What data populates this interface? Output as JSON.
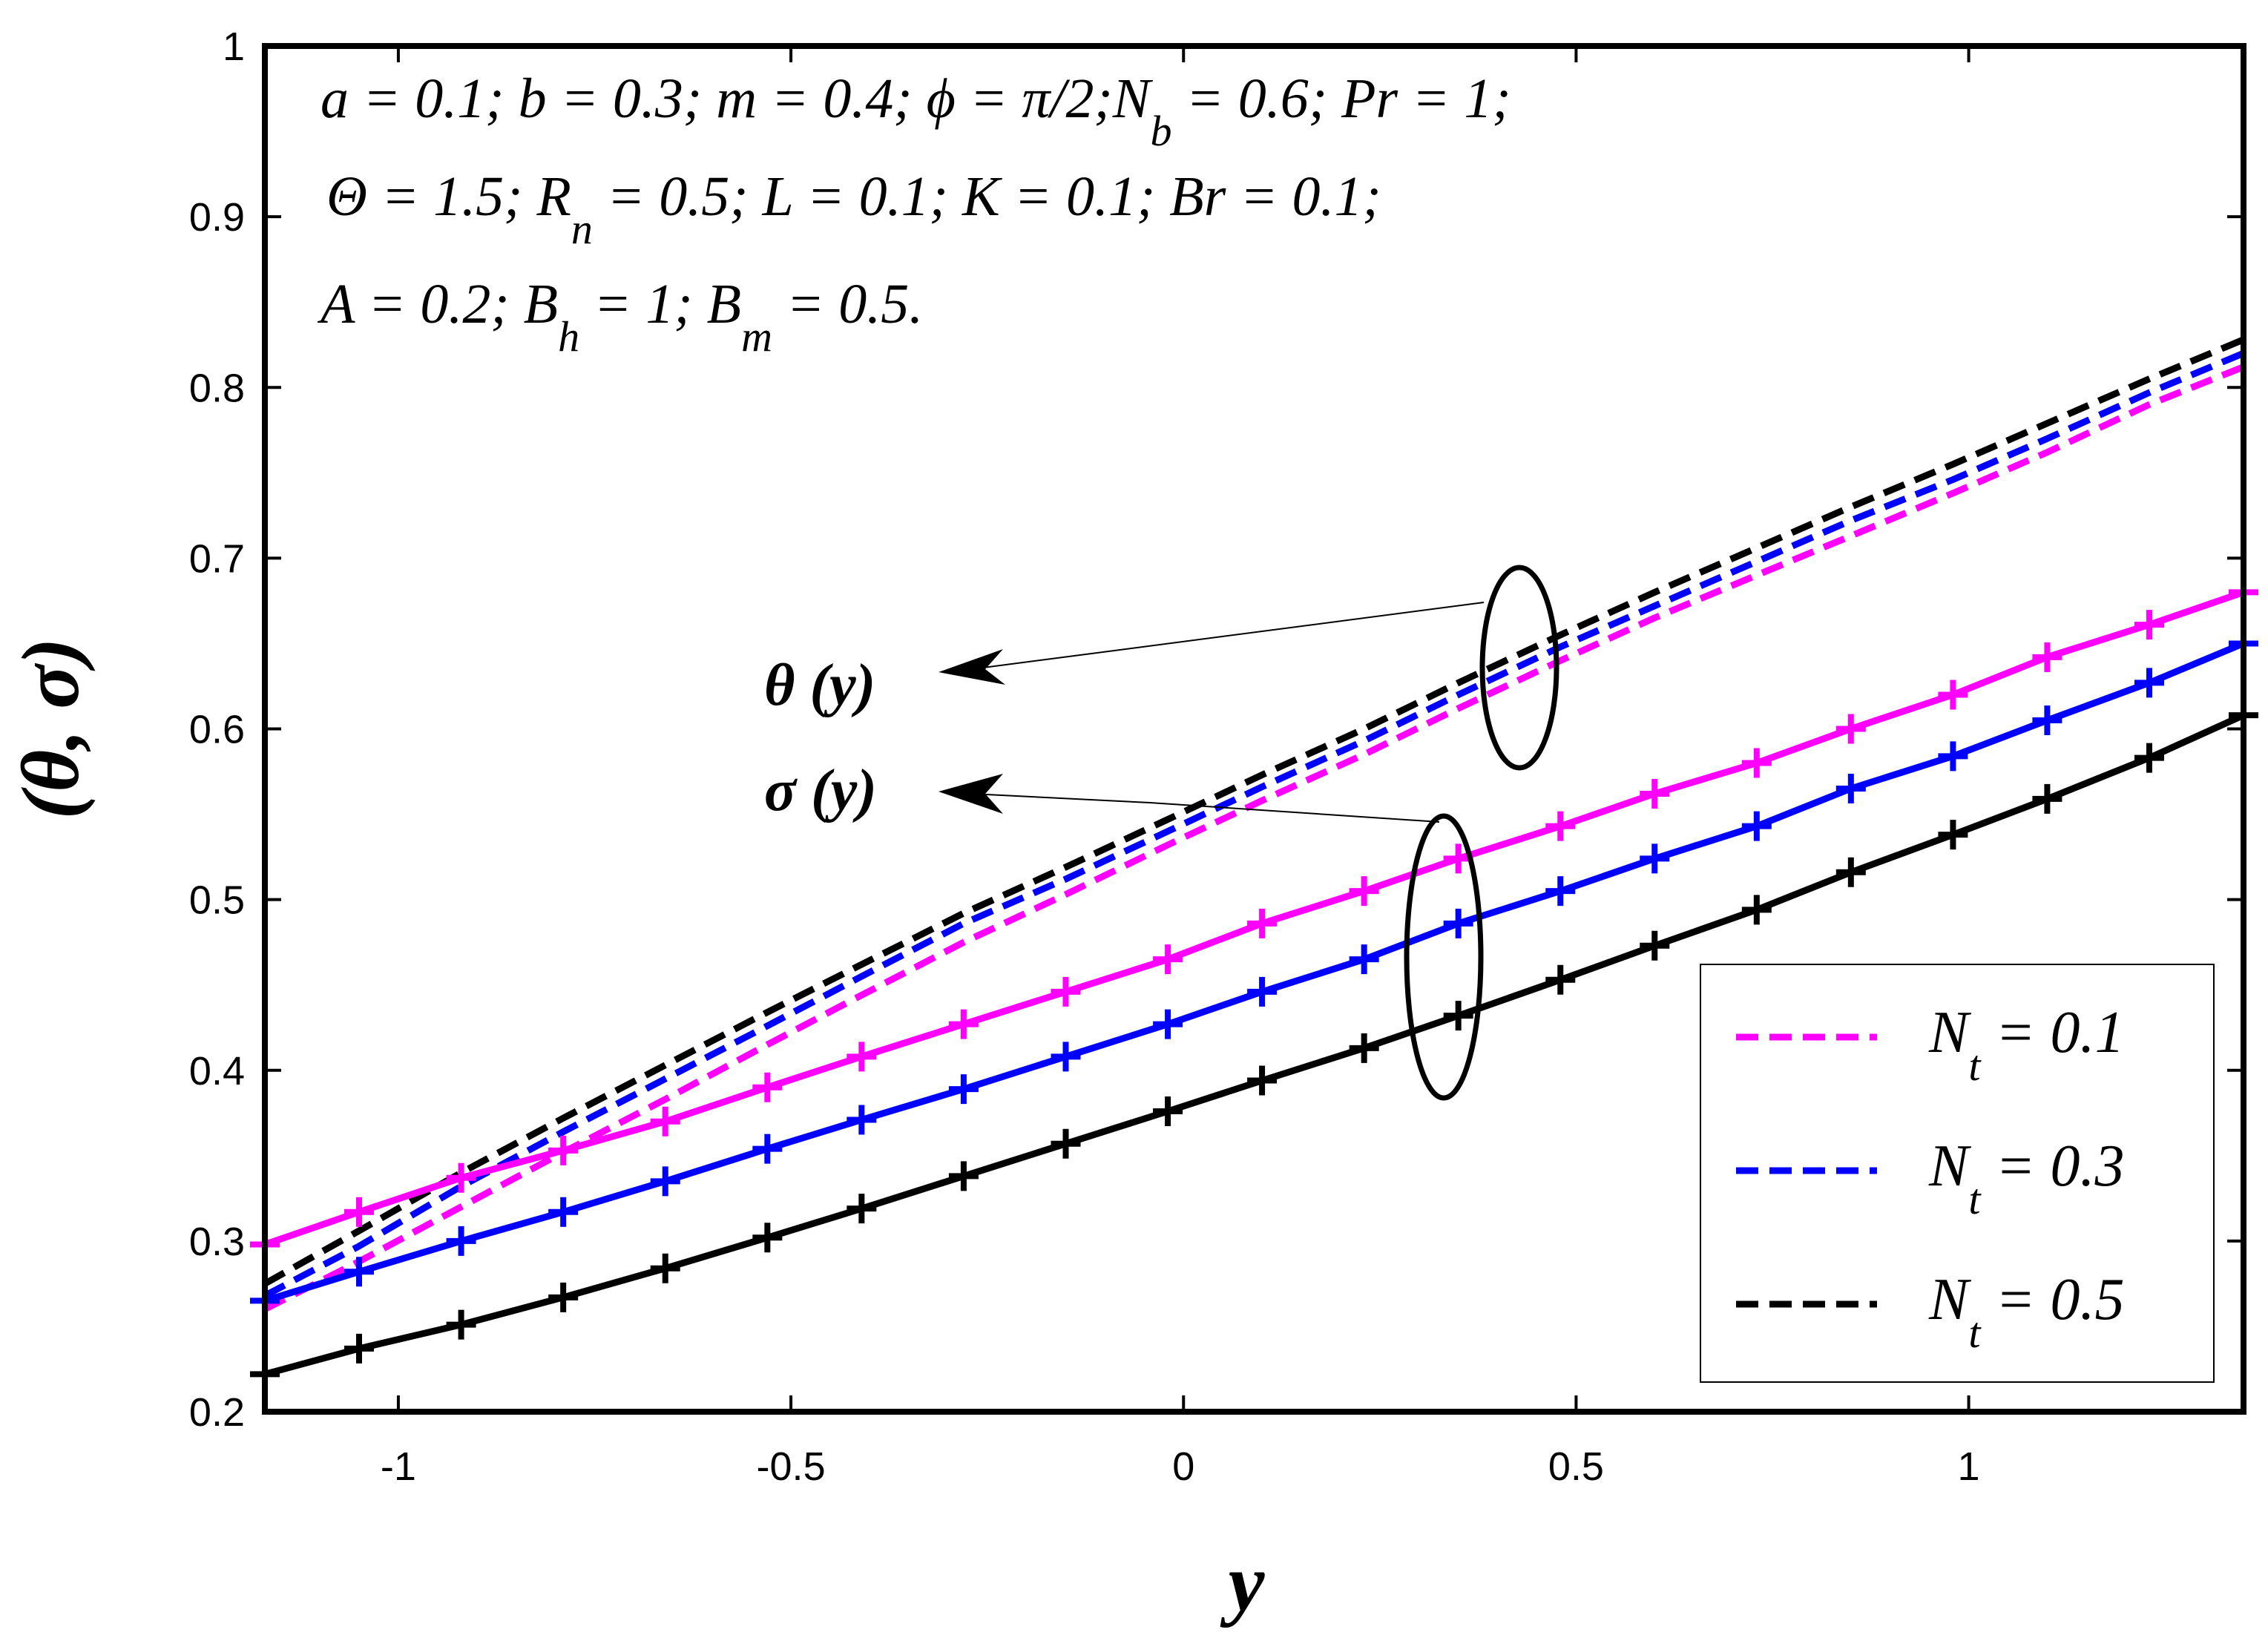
{
  "chart_data": {
    "type": "line",
    "title": "",
    "xlabel": "y",
    "ylabel": "(θ, σ)",
    "xlim": [
      -1.17,
      1.35
    ],
    "ylim": [
      0.2,
      1.0
    ],
    "xticks": [
      -1,
      -0.5,
      0,
      0.5,
      1
    ],
    "xtick_labels": [
      "-1",
      "-0.5",
      "0",
      "0.5",
      "1"
    ],
    "yticks": [
      0.2,
      0.3,
      0.4,
      0.5,
      0.6,
      0.7,
      0.8,
      0.9,
      1.0
    ],
    "ytick_labels": [
      "0.2",
      "0.3",
      "0.4",
      "0.5",
      "0.6",
      "0.7",
      "0.8",
      "0.9",
      "1"
    ],
    "grid": false,
    "legend_position": "bottom-right",
    "x": [
      -1.17,
      -1.05,
      -0.92,
      -0.79,
      -0.66,
      -0.53,
      -0.41,
      -0.28,
      -0.15,
      -0.02,
      0.1,
      0.23,
      0.35,
      0.48,
      0.6,
      0.73,
      0.85,
      0.98,
      1.1,
      1.23,
      1.35
    ],
    "series": [
      {
        "name": "N_t = 0.1",
        "group": "θ(y)",
        "style": "dashed",
        "color": "#ff00ff",
        "values": [
          0.26,
          0.288,
          0.32,
          0.352,
          0.383,
          0.415,
          0.444,
          0.475,
          0.503,
          0.532,
          0.558,
          0.585,
          0.612,
          0.64,
          0.665,
          0.69,
          0.713,
          0.738,
          0.762,
          0.79,
          0.812
        ]
      },
      {
        "name": "N_t = 0.3",
        "group": "θ(y)",
        "style": "dashed",
        "color": "#0000ff",
        "values": [
          0.268,
          0.297,
          0.332,
          0.364,
          0.395,
          0.426,
          0.455,
          0.486,
          0.512,
          0.54,
          0.566,
          0.593,
          0.62,
          0.648,
          0.672,
          0.698,
          0.722,
          0.746,
          0.77,
          0.797,
          0.82
        ]
      },
      {
        "name": "N_t = 0.5",
        "group": "θ(y)",
        "style": "dashed",
        "color": "#000000",
        "values": [
          0.275,
          0.306,
          0.34,
          0.372,
          0.403,
          0.434,
          0.462,
          0.492,
          0.519,
          0.547,
          0.573,
          0.6,
          0.627,
          0.655,
          0.68,
          0.706,
          0.73,
          0.755,
          0.779,
          0.805,
          0.828
        ]
      },
      {
        "name": "N_t = 0.1",
        "group": "σ(y)",
        "style": "solid-plus",
        "color": "#ff00ff",
        "values": [
          0.298,
          0.317,
          0.337,
          0.353,
          0.37,
          0.39,
          0.408,
          0.427,
          0.446,
          0.465,
          0.486,
          0.505,
          0.524,
          0.543,
          0.562,
          0.58,
          0.6,
          0.62,
          0.642,
          0.661,
          0.68
        ]
      },
      {
        "name": "N_t = 0.3",
        "group": "σ(y)",
        "style": "solid-plus",
        "color": "#0000ff",
        "values": [
          0.265,
          0.282,
          0.3,
          0.317,
          0.335,
          0.354,
          0.371,
          0.389,
          0.408,
          0.427,
          0.446,
          0.465,
          0.486,
          0.505,
          0.524,
          0.543,
          0.565,
          0.584,
          0.605,
          0.627,
          0.65
        ]
      },
      {
        "name": "N_t = 0.5",
        "group": "σ(y)",
        "style": "solid-plus",
        "color": "#000000",
        "values": [
          0.222,
          0.237,
          0.251,
          0.267,
          0.284,
          0.302,
          0.319,
          0.338,
          0.357,
          0.376,
          0.394,
          0.413,
          0.432,
          0.453,
          0.473,
          0.494,
          0.516,
          0.538,
          0.559,
          0.583,
          0.608
        ]
      }
    ],
    "annotations": {
      "theta_label": "θ (y)",
      "sigma_label": "σ (y)",
      "params_line1": [
        "a = 0.1; b = 0.3; m = 0.4; ϕ = π/2;N",
        "b",
        " = 0.6; Pr = 1;"
      ],
      "params_line2": [
        "Θ = 1.5; R",
        "n",
        " = 0.5; L = 0.1; K = 0.1; Br = 0.1;"
      ],
      "params_line3": [
        "A = 0.2; B",
        "h",
        " = 1; B",
        "m",
        " = 0.5."
      ]
    },
    "legend": [
      {
        "main": "N",
        "sub": "t",
        "rest": " = 0.1",
        "color": "#ff00ff"
      },
      {
        "main": "N",
        "sub": "t",
        "rest": " = 0.3",
        "color": "#0000ff"
      },
      {
        "main": "N",
        "sub": "t",
        "rest": " = 0.5",
        "color": "#000000"
      }
    ]
  }
}
